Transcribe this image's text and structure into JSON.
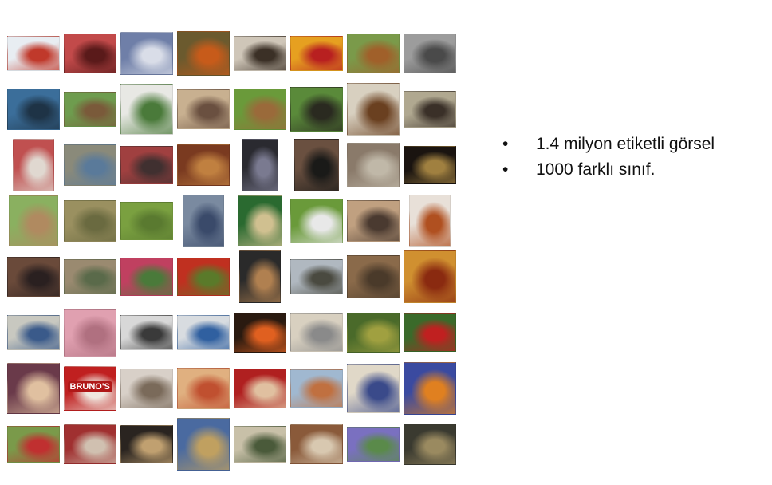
{
  "slide": {
    "bullets": [
      "1.4 milyon etiketli görsel",
      "1000 farklı sınıf."
    ],
    "bullet_glyph": "•",
    "photo_signs": {
      "brunos_sign": "BRUNO'S"
    }
  },
  "thumbnail_grid": {
    "rows": 8,
    "cols": 8,
    "tiles": [
      {
        "subject": "snowmobile",
        "colors": [
          "#e8edf2",
          "#c0392b"
        ]
      },
      {
        "subject": "red-light-scene",
        "colors": [
          "#c24a4a",
          "#5a1a1a"
        ]
      },
      {
        "subject": "glass-dish",
        "colors": [
          "#6f7fa8",
          "#d9dde8"
        ]
      },
      {
        "subject": "ladybug-plant",
        "colors": [
          "#6b5a2e",
          "#c75b1a"
        ]
      },
      {
        "subject": "dog-on-bed",
        "colors": [
          "#cfc6b8",
          "#3b3026"
        ]
      },
      {
        "subject": "peppers",
        "colors": [
          "#e6a020",
          "#b82020"
        ]
      },
      {
        "subject": "dog-on-grass",
        "colors": [
          "#7a9a4a",
          "#a0602a"
        ]
      },
      {
        "subject": "dog-on-couch",
        "colors": [
          "#9c9c9c",
          "#4a4a4a"
        ]
      },
      {
        "subject": "whale",
        "colors": [
          "#3b6e9a",
          "#1e3346"
        ]
      },
      {
        "subject": "horse-carriage",
        "colors": [
          "#6e9c4e",
          "#7a5a3a"
        ]
      },
      {
        "subject": "white-room-plant",
        "colors": [
          "#e8e8e4",
          "#4a7a3a"
        ]
      },
      {
        "subject": "horse-cart-street",
        "colors": [
          "#c8b090",
          "#6a5040"
        ]
      },
      {
        "subject": "dog-sitting-grass",
        "colors": [
          "#6a9a3a",
          "#9a6a3a"
        ]
      },
      {
        "subject": "dogs-on-grass",
        "colors": [
          "#5a8a3a",
          "#2a2a20"
        ]
      },
      {
        "subject": "man-with-pizza",
        "colors": [
          "#d8d0c0",
          "#6a4020"
        ]
      },
      {
        "subject": "hedgehog",
        "colors": [
          "#b0a890",
          "#3a3028"
        ]
      },
      {
        "subject": "kids-in-room",
        "colors": [
          "#c05050",
          "#e0d8d0"
        ]
      },
      {
        "subject": "weimaraner",
        "colors": [
          "#8a8a7a",
          "#5a7a9a"
        ]
      },
      {
        "subject": "crowd",
        "colors": [
          "#a04040",
          "#403030"
        ]
      },
      {
        "subject": "stage",
        "colors": [
          "#7a3a20",
          "#c08040"
        ]
      },
      {
        "subject": "sculpture-frame",
        "colors": [
          "#2a2a30",
          "#7a7a90"
        ]
      },
      {
        "subject": "dog-with-hat",
        "colors": [
          "#6a5040",
          "#1a1a18"
        ]
      },
      {
        "subject": "cat-on-cushion",
        "colors": [
          "#8a7a6a",
          "#c0b8a8"
        ]
      },
      {
        "subject": "lizard",
        "colors": [
          "#1a1410",
          "#a08040"
        ]
      },
      {
        "subject": "baseball-field",
        "colors": [
          "#8ab060",
          "#b08a60"
        ]
      },
      {
        "subject": "kangaroo",
        "colors": [
          "#9a9060",
          "#6a6a40"
        ]
      },
      {
        "subject": "bird-in-grass",
        "colors": [
          "#7aa040",
          "#5a7a30"
        ]
      },
      {
        "subject": "man-with-backpack",
        "colors": [
          "#7a8aa0",
          "#3a4a6a"
        ]
      },
      {
        "subject": "green-bottle",
        "colors": [
          "#2a6a30",
          "#d0c090"
        ]
      },
      {
        "subject": "dogs-playing",
        "colors": [
          "#6a9a3a",
          "#e8e8e8"
        ]
      },
      {
        "subject": "family-on-couch",
        "colors": [
          "#c0a080",
          "#4a3a30"
        ]
      },
      {
        "subject": "pasta-plate",
        "colors": [
          "#e8e0d8",
          "#b05020"
        ]
      },
      {
        "subject": "man-face",
        "colors": [
          "#6a4a3a",
          "#2a2020"
        ]
      },
      {
        "subject": "house",
        "colors": [
          "#9a8a70",
          "#5a6a4a"
        ]
      },
      {
        "subject": "flower-stall",
        "colors": [
          "#c04060",
          "#4a7a3a"
        ]
      },
      {
        "subject": "red-flowers",
        "colors": [
          "#c03020",
          "#5a7a2a"
        ]
      },
      {
        "subject": "chalkboard-sign",
        "colors": [
          "#2a2a2a",
          "#b08050"
        ]
      },
      {
        "subject": "street-scene",
        "colors": [
          "#b0b8c0",
          "#4a4a40"
        ]
      },
      {
        "subject": "firewood",
        "colors": [
          "#8a6a4a",
          "#4a3a2a"
        ]
      },
      {
        "subject": "compass-tile",
        "colors": [
          "#d09030",
          "#8a2a10"
        ]
      },
      {
        "subject": "office-desk",
        "colors": [
          "#c8c8c0",
          "#3a5a8a"
        ]
      },
      {
        "subject": "baby-mouth",
        "colors": [
          "#e0a0b0",
          "#b07080"
        ]
      },
      {
        "subject": "bathroom",
        "colors": [
          "#d8d8d8",
          "#3a3a3a"
        ]
      },
      {
        "subject": "police-car",
        "colors": [
          "#d8dce0",
          "#3060a0"
        ]
      },
      {
        "subject": "stove-burners",
        "colors": [
          "#2a1a10",
          "#e06020"
        ]
      },
      {
        "subject": "office-chair",
        "colors": [
          "#d8d0c0",
          "#8a8a8a"
        ]
      },
      {
        "subject": "leaves",
        "colors": [
          "#4a6a2a",
          "#a0a040"
        ]
      },
      {
        "subject": "red-flower",
        "colors": [
          "#3a6a2a",
          "#c02020"
        ]
      },
      {
        "subject": "lamp",
        "colors": [
          "#6a3a4a",
          "#e0c0a0"
        ]
      },
      {
        "subject": "brunos-sign",
        "colors": [
          "#c02020",
          "#f0e8e0"
        ]
      },
      {
        "subject": "girl-drawing",
        "colors": [
          "#d8d0c8",
          "#7a6a5a"
        ]
      },
      {
        "subject": "pizza",
        "colors": [
          "#e0b080",
          "#c05030"
        ]
      },
      {
        "subject": "red-seeds",
        "colors": [
          "#b02020",
          "#e0c0a0"
        ]
      },
      {
        "subject": "desert",
        "colors": [
          "#a0b8d0",
          "#c07040"
        ]
      },
      {
        "subject": "man-with-child",
        "colors": [
          "#e0d8c8",
          "#3a4a8a"
        ]
      },
      {
        "subject": "basketball-players",
        "colors": [
          "#3a4aa0",
          "#e08020"
        ]
      },
      {
        "subject": "soccer-kids",
        "colors": [
          "#7a9a4a",
          "#c03030"
        ]
      },
      {
        "subject": "red-interior",
        "colors": [
          "#a03030",
          "#d0c0b0"
        ]
      },
      {
        "subject": "dark-hall",
        "colors": [
          "#2a2420",
          "#c0a070"
        ]
      },
      {
        "subject": "woman-in-field",
        "colors": [
          "#4a6aa0",
          "#c0a060"
        ]
      },
      {
        "subject": "classroom",
        "colors": [
          "#c8c0a8",
          "#4a5a3a"
        ]
      },
      {
        "subject": "dining-table",
        "colors": [
          "#8a5a3a",
          "#d8c8b0"
        ]
      },
      {
        "subject": "purple-flowers",
        "colors": [
          "#7a70c0",
          "#5a8a4a"
        ]
      },
      {
        "subject": "dark-room",
        "colors": [
          "#3a3a30",
          "#9a8a60"
        ]
      }
    ]
  }
}
